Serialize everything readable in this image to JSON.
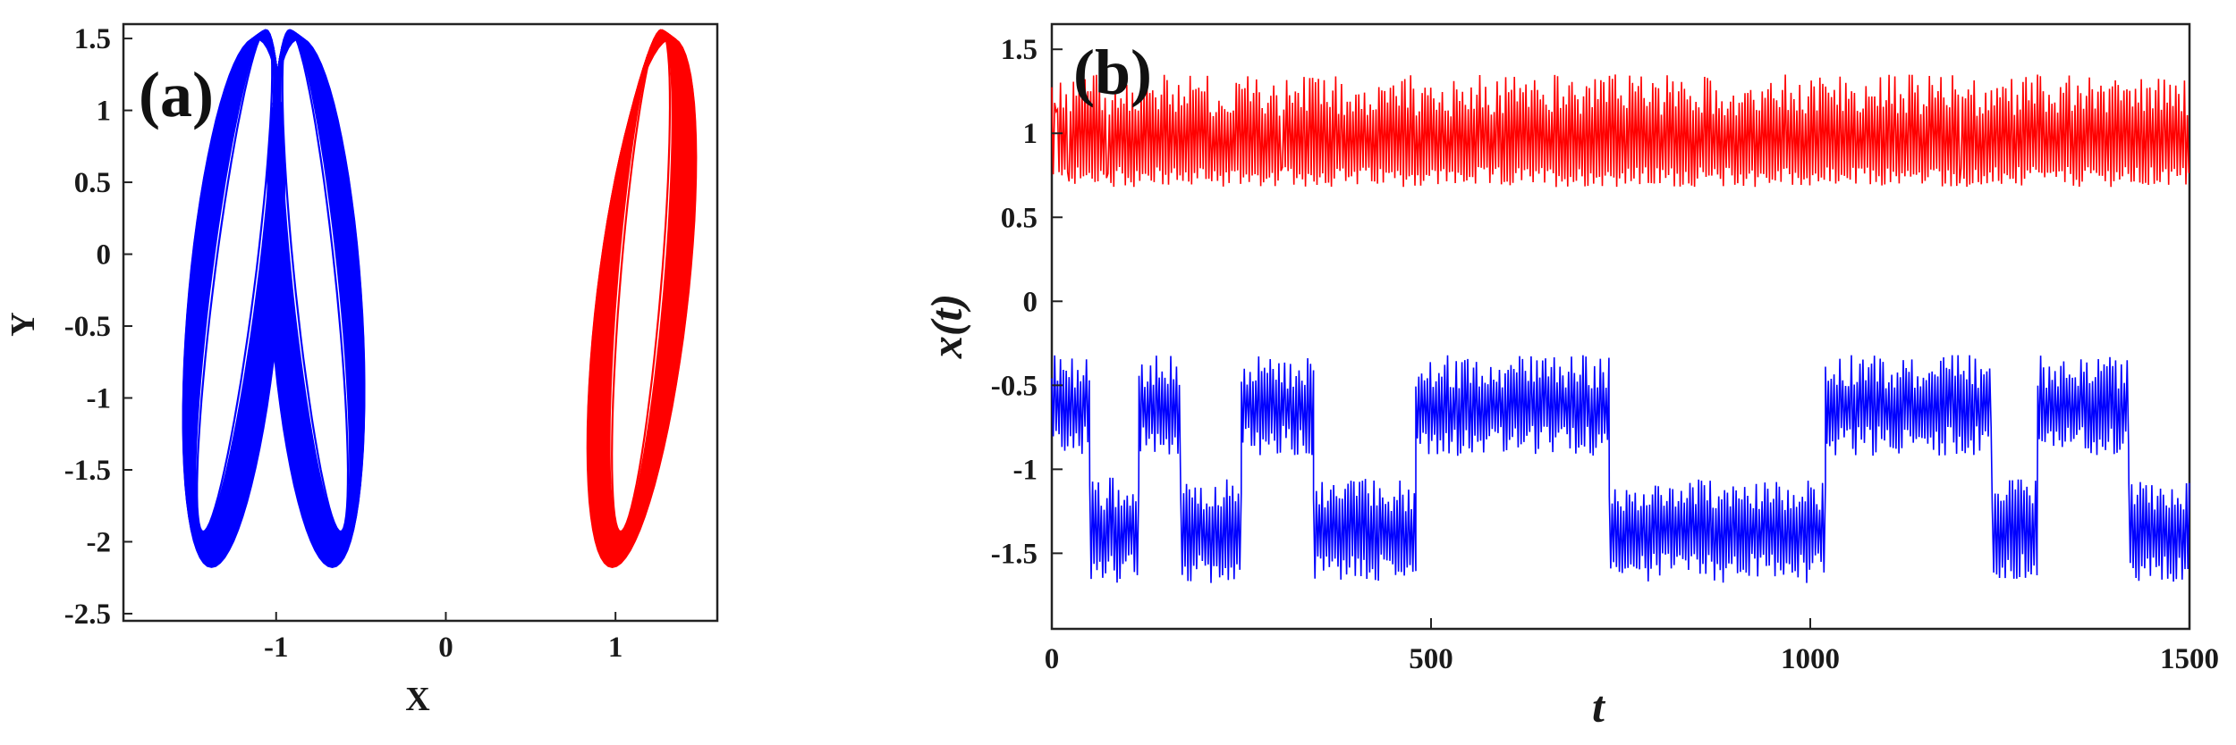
{
  "colors": {
    "red": "#ff0000",
    "blue": "#0000ff",
    "axis": "#222222"
  },
  "chart_data": [
    {
      "type": "scatter",
      "panel_label": "(a)",
      "xlabel": "X",
      "ylabel": "Y",
      "xlim": [
        -1.9,
        1.6
      ],
      "ylim": [
        -2.55,
        1.6
      ],
      "xticks": [
        -1,
        0,
        1
      ],
      "xtick_labels": [
        "-1",
        "0",
        "1"
      ],
      "yticks": [
        1.5,
        1,
        0.5,
        0,
        -0.5,
        -1,
        -1.5,
        -2,
        -2.5
      ],
      "ytick_labels": [
        "1.5",
        "1",
        "0.5",
        "0",
        "-0.5",
        "-1",
        "-1.5",
        "-2",
        "-2.5"
      ],
      "grid": false,
      "series": [
        {
          "color": "#0000ff",
          "shape": "double-scroll attractor",
          "x_range": [
            -1.68,
            -0.32
          ],
          "y_range": [
            -2.2,
            1.58
          ]
        },
        {
          "color": "#ff0000",
          "shape": "single-scroll attractor",
          "x_range": [
            0.65,
            1.3
          ],
          "y_range": [
            -2.2,
            1.58
          ]
        }
      ]
    },
    {
      "type": "line",
      "panel_label": "(b)",
      "xlabel": "t",
      "ylabel": "x(t)",
      "xlim": [
        0,
        1500
      ],
      "ylim": [
        -1.95,
        1.65
      ],
      "xticks": [
        0,
        500,
        1000,
        1500
      ],
      "xtick_labels": [
        "0",
        "500",
        "1000",
        "1500"
      ],
      "yticks": [
        1.5,
        1,
        0.5,
        0,
        -0.5,
        -1,
        -1.5
      ],
      "ytick_labels": [
        "1.5",
        "1",
        "0.5",
        "0",
        "-0.5",
        "-1",
        "-1.5"
      ],
      "grid": false,
      "series": [
        {
          "color": "#ff0000",
          "x_range": [
            0,
            1500
          ],
          "y_range": [
            0.68,
            1.35
          ]
        },
        {
          "color": "#0000ff",
          "x_range": [
            0,
            1500
          ],
          "upper_band": [
            -0.92,
            -0.32
          ],
          "lower_band": [
            -1.68,
            -1.05
          ],
          "switch_times": [
            0,
            50,
            115,
            170,
            250,
            345,
            480,
            735,
            1020,
            1240,
            1300,
            1420,
            1500
          ],
          "levels": [
            "upper",
            "lower",
            "upper",
            "lower",
            "upper",
            "lower",
            "upper",
            "lower",
            "upper",
            "lower",
            "upper",
            "lower"
          ]
        }
      ]
    }
  ]
}
